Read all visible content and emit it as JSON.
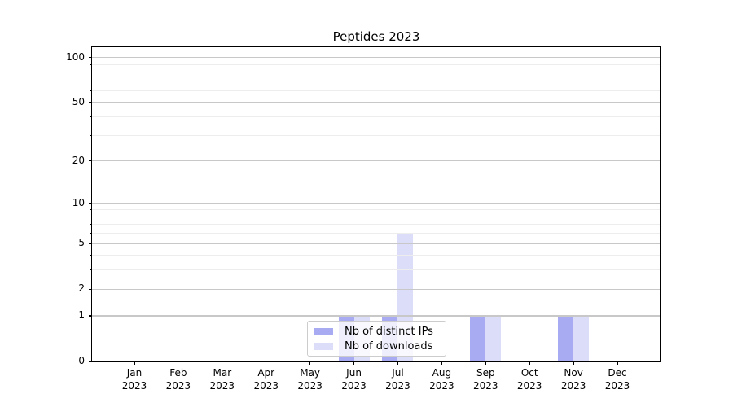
{
  "chart_data": {
    "type": "bar",
    "title": "Peptides 2023",
    "categories": [
      "Jan 2023",
      "Feb 2023",
      "Mar 2023",
      "Apr 2023",
      "May 2023",
      "Jun 2023",
      "Jul 2023",
      "Aug 2023",
      "Sep 2023",
      "Oct 2023",
      "Nov 2023",
      "Dec 2023"
    ],
    "series": [
      {
        "name": "Nb of distinct IPs",
        "color": "#a8abf2",
        "values": [
          0,
          0,
          0,
          0,
          0,
          1,
          1,
          0,
          1,
          0,
          1,
          0
        ]
      },
      {
        "name": "Nb of downloads",
        "color": "#dbddf9",
        "values": [
          0,
          0,
          0,
          0,
          0,
          1,
          6,
          0,
          1,
          0,
          1,
          0
        ]
      }
    ],
    "xlabel": "",
    "ylabel": "",
    "y_scale": "log1p",
    "y_major_ticks": [
      0,
      1,
      2,
      5,
      10,
      20,
      50,
      100
    ],
    "y_minor_ticks": [
      3,
      4,
      6,
      7,
      8,
      9,
      30,
      40,
      60,
      70,
      80,
      90
    ],
    "ylim": [
      0,
      117
    ],
    "grid": true,
    "legend_position": "lower center"
  },
  "colors": {
    "major_grid": "#c8c8c8",
    "minor_grid": "#ededed",
    "axis": "#000000",
    "legend_border": "#cccccc",
    "legend_bg": "rgba(255,255,255,0.8)"
  }
}
